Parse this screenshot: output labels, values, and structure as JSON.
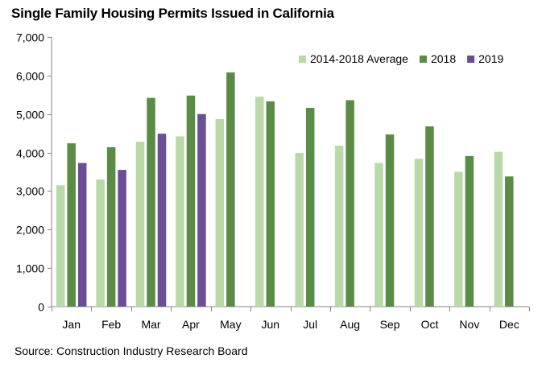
{
  "chart_data": {
    "type": "bar",
    "title": "Single Family Housing Permits Issued in California",
    "source": "Source: Construction Industry Research Board",
    "categories": [
      "Jan",
      "Feb",
      "Mar",
      "Apr",
      "May",
      "Jun",
      "Jul",
      "Aug",
      "Sep",
      "Oct",
      "Nov",
      "Dec"
    ],
    "ylim": [
      0,
      7000
    ],
    "yticks": [
      0,
      1000,
      2000,
      3000,
      4000,
      5000,
      6000,
      7000
    ],
    "ytick_labels": [
      "0",
      "1,000",
      "2,000",
      "3,000",
      "4,000",
      "5,000",
      "6,000",
      "7,000"
    ],
    "grid": false,
    "legend_position": "top-right",
    "series": [
      {
        "name": "2014-2018 Average",
        "color": "#b9d9a8",
        "values": [
          3150,
          3300,
          4280,
          4420,
          4870,
          5450,
          3990,
          4180,
          3730,
          3840,
          3500,
          4020
        ]
      },
      {
        "name": "2018",
        "color": "#5b8c46",
        "values": [
          4240,
          4140,
          5420,
          5480,
          6080,
          5330,
          5160,
          5360,
          4470,
          4680,
          3910,
          3380
        ]
      },
      {
        "name": "2019",
        "color": "#6a4f95",
        "values": [
          3730,
          3550,
          4490,
          5000,
          null,
          null,
          null,
          null,
          null,
          null,
          null,
          null
        ]
      }
    ]
  }
}
